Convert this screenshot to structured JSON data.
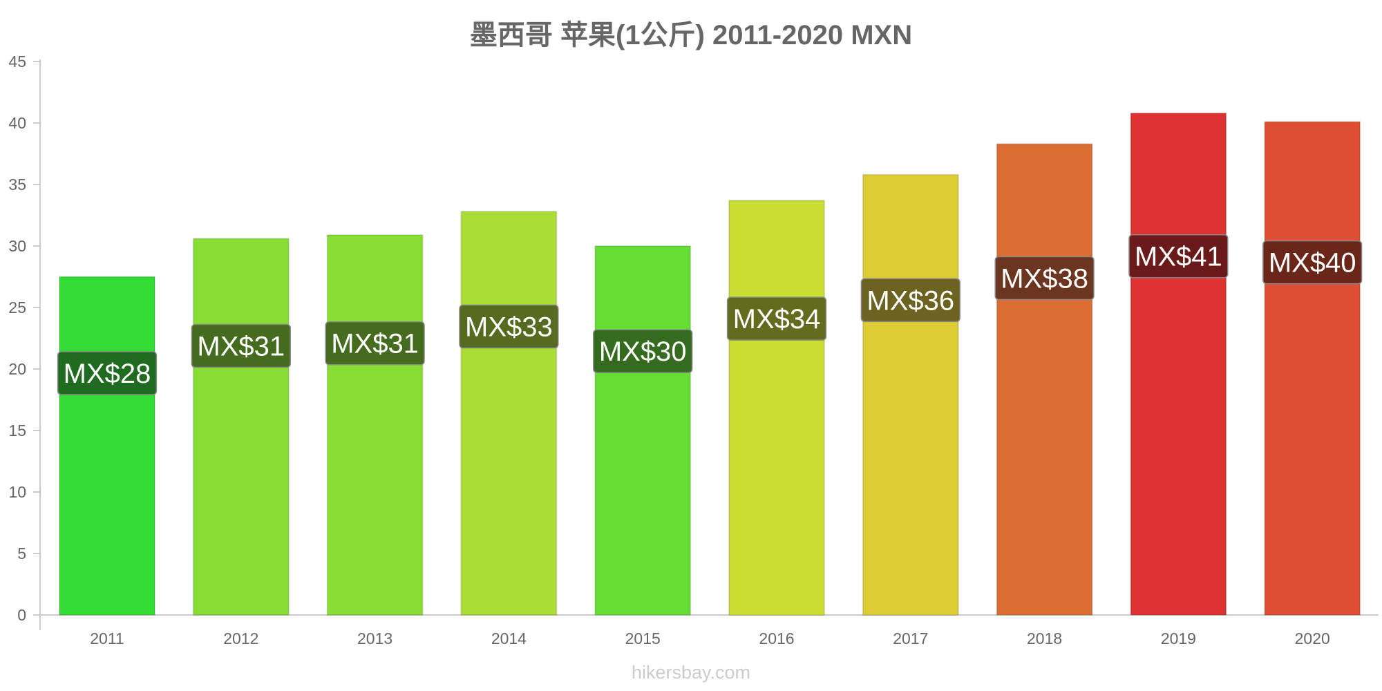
{
  "chart_data": {
    "type": "bar",
    "title": "墨西哥 苹果(1公斤) 2011-2020 MXN",
    "xlabel": "",
    "ylabel": "",
    "categories": [
      "2011",
      "2012",
      "2013",
      "2014",
      "2015",
      "2016",
      "2017",
      "2018",
      "2019",
      "2020"
    ],
    "values": [
      27.5,
      30.6,
      30.9,
      32.8,
      30.0,
      33.7,
      35.8,
      38.3,
      40.8,
      40.1
    ],
    "data_labels": [
      "MX$28",
      "MX$31",
      "MX$31",
      "MX$33",
      "MX$30",
      "MX$34",
      "MX$36",
      "MX$38",
      "MX$41",
      "MX$40"
    ],
    "bar_colors": [
      "#33dd33",
      "#88dd33",
      "#88dd33",
      "#aadd33",
      "#66dd33",
      "#ccdd33",
      "#ddcc33",
      "#dd6e33",
      "#dd3333",
      "#dd4e33"
    ],
    "label_bg_colors": [
      "#1f6b1f",
      "#456b1f",
      "#456b1f",
      "#556b1f",
      "#356b1f",
      "#636b1f",
      "#6b631f",
      "#6b351f",
      "#6b1a1a",
      "#6b261a"
    ],
    "ylim": [
      0,
      45
    ],
    "yticks": [
      0,
      5,
      10,
      15,
      20,
      25,
      30,
      35,
      40,
      45
    ],
    "grid": false,
    "legend": "none"
  },
  "watermark": "hikersbay.com"
}
